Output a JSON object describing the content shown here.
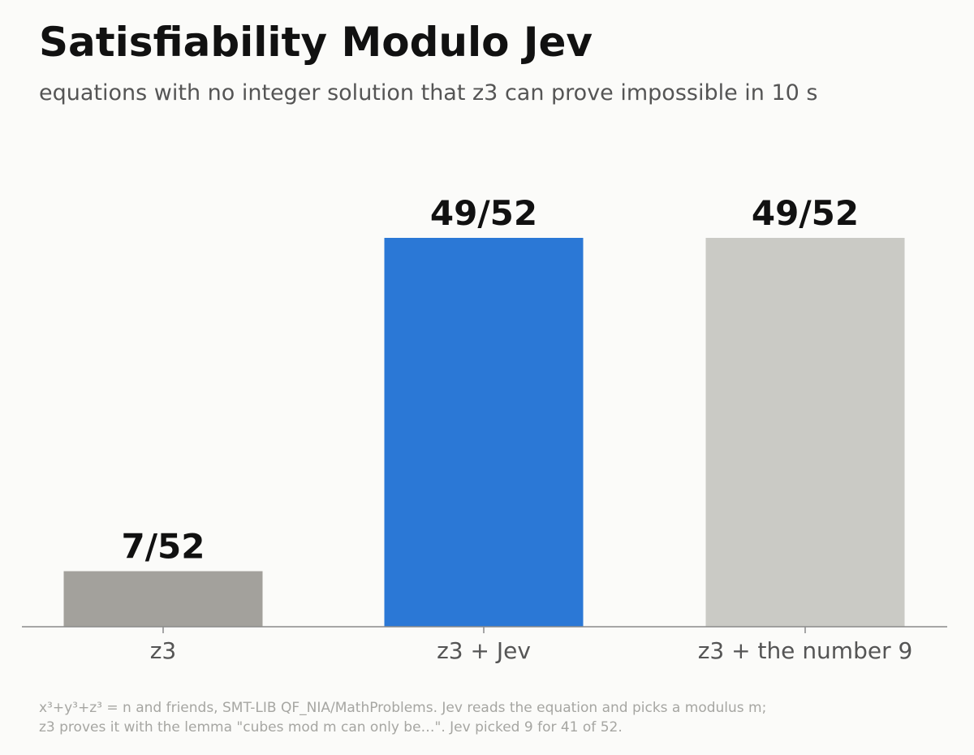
{
  "chart_data": {
    "type": "bar",
    "title": "Satisfiability Modulo Jev",
    "subtitle": "equations with no integer solution that z3 can prove impossible in 10 s",
    "categories": [
      "z3",
      "z3 + Jev",
      "z3 + the number 9"
    ],
    "values": [
      7,
      49,
      49
    ],
    "total": 52,
    "data_labels": [
      "7/52",
      "49/52",
      "49/52"
    ],
    "bar_colors": [
      "#a3a19c",
      "#2b78d6",
      "#cacac5"
    ],
    "ylim": [
      0,
      52
    ],
    "xlabel": "",
    "ylabel": "",
    "grid": false,
    "legend": "none"
  },
  "footnote": {
    "line1": "x³+y³+z³ = n and friends, SMT-LIB QF_NIA/MathProblems. Jev reads the equation and picks a modulus m;",
    "line2": "z3 proves it with the lemma \"cubes mod m can only be…\". Jev picked 9 for 41 of 52."
  },
  "colors": {
    "background": "#fbfbf9",
    "title": "#111111",
    "subtitle": "#555555",
    "axis": "#8a8a8a",
    "tick_label": "#555555",
    "footnote": "#a6a6a2"
  }
}
